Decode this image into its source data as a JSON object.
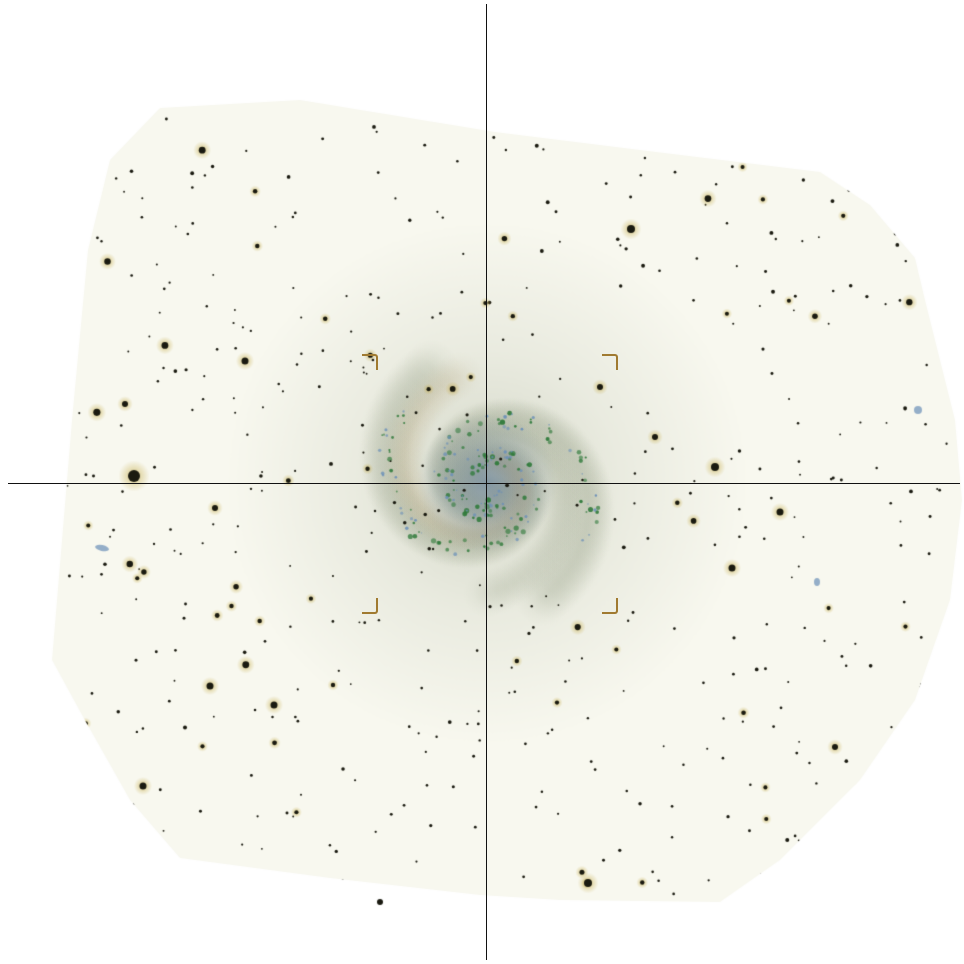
{
  "image": {
    "subject": "spiral-galaxy-field",
    "mosaic_tint": "#f8f8ef",
    "background": "#ffffff",
    "star_color": "#1a1a10",
    "halo_color": "#c8b050",
    "core_color": "#7f93a0",
    "arm_color": "#a8b09a",
    "hii_color": "#2f7a3a",
    "blue_knot_color": "#6a8fb8"
  },
  "overlay": {
    "crosshair_color": "#111111",
    "bracket_color": "#a07a30"
  }
}
